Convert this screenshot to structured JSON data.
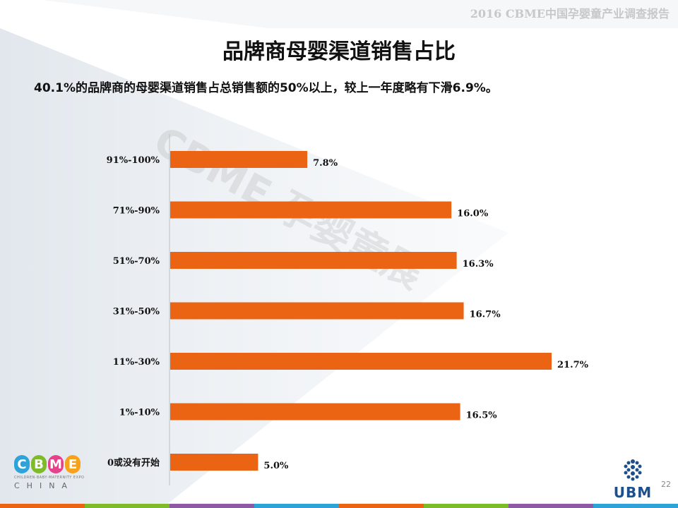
{
  "header": {
    "text": "2016 CBME中国孕婴童产业调查报告"
  },
  "slide": {
    "title": "品牌商母婴渠道销售占比",
    "subtitle": "40.1%的品牌商的母婴渠道销售占总销售额的50%以上，较上一年度略有下滑6.9%。",
    "page_number": "22"
  },
  "watermark": {
    "text": "CBME 孕婴童展"
  },
  "logo_left": {
    "letters": [
      "C",
      "B",
      "M",
      "E"
    ],
    "tagline": "CHILDREN·BABY·MATERNITY EXPO",
    "sub": "CHINA"
  },
  "logo_right": {
    "text": "UBM"
  },
  "colors": {
    "bar": "#ea6414",
    "axis": "#bfbfbf",
    "logo_letters": [
      "#2fa3d8",
      "#7dbb2a",
      "#e5428b",
      "#f6a21a"
    ],
    "bottom_bar": [
      "#ea6414",
      "#7dbb2a",
      "#8e5aa3",
      "#2fa3d8",
      "#ea6414",
      "#7dbb2a",
      "#8e5aa3",
      "#2fa3d8"
    ]
  },
  "chart_data": {
    "type": "bar",
    "orientation": "horizontal",
    "categories": [
      "91%-100%",
      "71%-90%",
      "51%-70%",
      "31%-50%",
      "11%-30%",
      "1%-10%",
      "0或没有开始"
    ],
    "values": [
      7.8,
      16.0,
      16.3,
      16.7,
      21.7,
      16.5,
      5.0
    ],
    "value_labels": [
      "7.8%",
      "16.0%",
      "16.3%",
      "16.7%",
      "21.7%",
      "16.5%",
      "5.0%"
    ],
    "xlim": [
      0,
      24
    ],
    "grid": false,
    "legend": "none",
    "xlabel": "",
    "ylabel": ""
  }
}
